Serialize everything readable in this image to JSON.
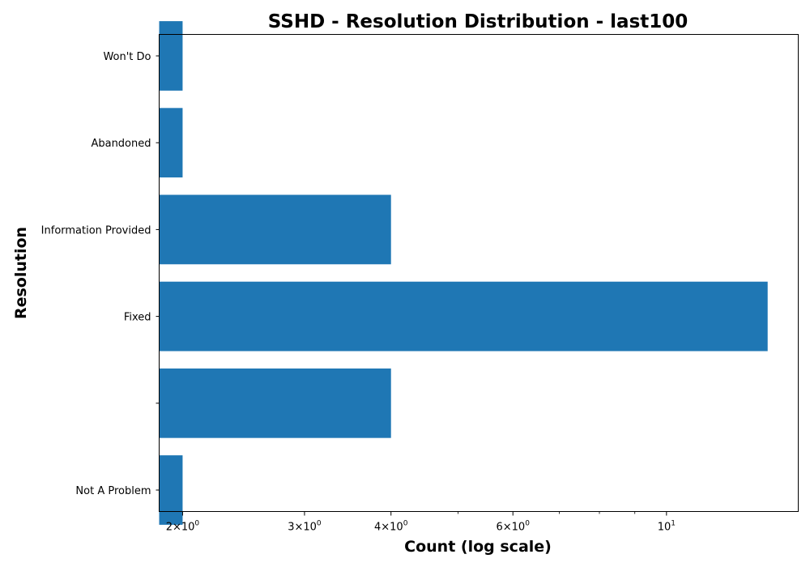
{
  "chart_data": {
    "type": "bar",
    "orientation": "horizontal",
    "title": "SSHD - Resolution Distribution - last100",
    "xlabel": "Count (log scale)",
    "ylabel": "Resolution",
    "xscale": "log",
    "xlim": [
      1.85,
      15.5
    ],
    "categories": [
      "Not A Problem",
      "",
      "Fixed",
      "Information Provided",
      "Abandoned",
      "Won't Do"
    ],
    "values": [
      2,
      4,
      14,
      4,
      2,
      2
    ],
    "bar_color": "#1f77b4",
    "x_ticks": [
      {
        "value": 2,
        "mantissa": "2",
        "base": "10",
        "exp": "0"
      },
      {
        "value": 3,
        "mantissa": "3",
        "base": "10",
        "exp": "0"
      },
      {
        "value": 4,
        "mantissa": "4",
        "base": "10",
        "exp": "0"
      },
      {
        "value": 6,
        "mantissa": "6",
        "base": "10",
        "exp": "0"
      },
      {
        "value": 10,
        "mantissa": "",
        "base": "10",
        "exp": "1"
      }
    ],
    "x_minor_ticks": [
      5,
      7,
      8,
      9
    ],
    "grid": false
  }
}
